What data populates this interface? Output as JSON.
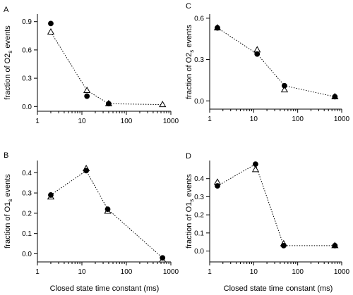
{
  "chart_data": [
    {
      "type": "scatter",
      "panel": "A",
      "ylabel_main": "fraction of O2",
      "ylabel_sub": "s",
      "ylabel_suffix": " events",
      "xlabel": "",
      "xscale": "log",
      "xlim": [
        1,
        1000
      ],
      "ylim": [
        -0.05,
        0.98
      ],
      "xticks": [
        1,
        10,
        100,
        1000
      ],
      "xtick_labels": [
        "1",
        "10",
        "100",
        "1000"
      ],
      "yticks": [
        0.0,
        0.3,
        0.6,
        0.9
      ],
      "ytick_labels": [
        "0.0",
        "0.3",
        "0.6",
        "0.9"
      ],
      "line_series": 1,
      "series": [
        {
          "marker": "filled-circle",
          "x": [
            2,
            13,
            40
          ],
          "y": [
            0.88,
            0.11,
            0.03
          ]
        },
        {
          "marker": "open-triangle",
          "x": [
            2,
            13,
            40,
            650
          ],
          "y": [
            0.79,
            0.17,
            0.03,
            0.02
          ]
        }
      ]
    },
    {
      "type": "scatter",
      "panel": "B",
      "ylabel_main": "fraction of O1",
      "ylabel_sub": "s",
      "ylabel_suffix": " events",
      "xlabel": "Closed state time constant (ms)",
      "xscale": "log",
      "xlim": [
        1,
        1000
      ],
      "ylim": [
        -0.04,
        0.46
      ],
      "xticks": [
        1,
        10,
        100,
        1000
      ],
      "xtick_labels": [
        "1",
        "10",
        "100",
        "1000"
      ],
      "yticks": [
        0.0,
        0.1,
        0.2,
        0.3,
        0.4
      ],
      "ytick_labels": [
        "0.0",
        "0.1",
        "0.2",
        "0.3",
        "0.4"
      ],
      "line_series": 0,
      "series": [
        {
          "marker": "filled-circle",
          "x": [
            2,
            12.5,
            38,
            650
          ],
          "y": [
            0.29,
            0.41,
            0.22,
            -0.02
          ]
        },
        {
          "marker": "open-triangle",
          "x": [
            2,
            12.5,
            38,
            650
          ],
          "y": [
            0.28,
            0.42,
            0.21,
            -0.03
          ]
        }
      ]
    },
    {
      "type": "scatter",
      "panel": "C",
      "ylabel_main": "fraction of O2",
      "ylabel_sub": "s",
      "ylabel_suffix": " events",
      "xlabel": "",
      "xscale": "log",
      "xlim": [
        1,
        1000
      ],
      "ylim": [
        -0.06,
        0.63
      ],
      "xticks": [
        1,
        10,
        100,
        1000
      ],
      "xtick_labels": [
        "1",
        "10",
        "100",
        "1000"
      ],
      "yticks": [
        0.0,
        0.3,
        0.6
      ],
      "ytick_labels": [
        "0.0",
        "0.3",
        "0.6"
      ],
      "line_series": 0,
      "series": [
        {
          "marker": "filled-circle",
          "x": [
            1.5,
            12,
            50,
            700
          ],
          "y": [
            0.53,
            0.34,
            0.11,
            0.03
          ]
        },
        {
          "marker": "open-triangle",
          "x": [
            1.5,
            12,
            50,
            700
          ],
          "y": [
            0.53,
            0.37,
            0.08,
            0.03
          ]
        }
      ]
    },
    {
      "type": "scatter",
      "panel": "D",
      "ylabel_main": "fraction of O1",
      "ylabel_sub": "s",
      "ylabel_suffix": " events",
      "xlabel": "Closed state time constant (ms)",
      "xscale": "log",
      "xlim": [
        1,
        1000
      ],
      "ylim": [
        -0.06,
        0.5
      ],
      "xticks": [
        1,
        10,
        100,
        1000
      ],
      "xtick_labels": [
        "1",
        "10",
        "100",
        "1000"
      ],
      "yticks": [
        0.0,
        0.1,
        0.2,
        0.3,
        0.4
      ],
      "ytick_labels": [
        "0.0",
        "0.1",
        "0.2",
        "0.3",
        "0.4"
      ],
      "line_series": 0,
      "series": [
        {
          "marker": "filled-circle",
          "x": [
            1.5,
            11,
            48,
            700
          ],
          "y": [
            0.36,
            0.48,
            0.03,
            0.03
          ]
        },
        {
          "marker": "open-triangle",
          "x": [
            1.5,
            11,
            48,
            700
          ],
          "y": [
            0.38,
            0.45,
            0.04,
            0.03
          ]
        }
      ]
    }
  ]
}
